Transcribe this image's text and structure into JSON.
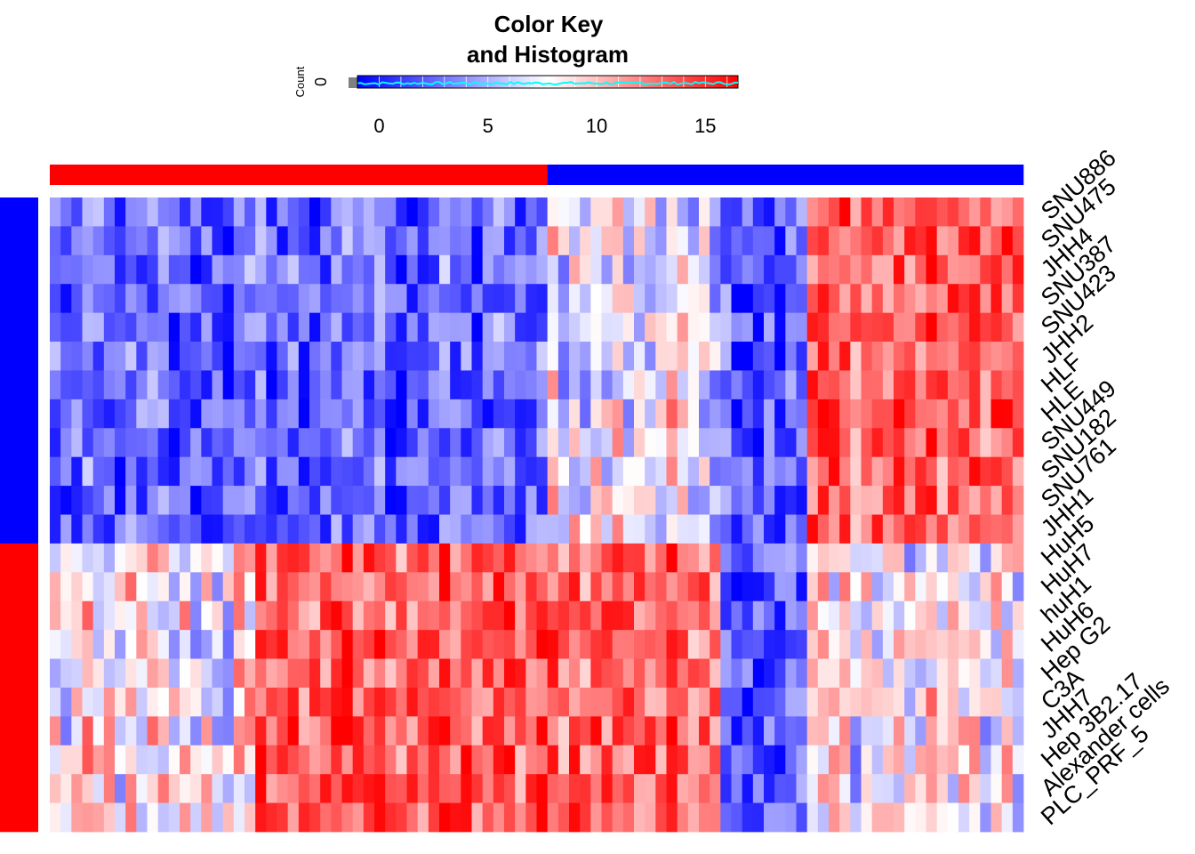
{
  "chart_data": {
    "type": "heatmap",
    "key": {
      "title_line1": "Color Key",
      "title_line2": "and Histogram",
      "ylabel": "Count",
      "ytick": "0",
      "range": [
        -1,
        16.5
      ],
      "ticks": [
        "0",
        "5",
        "10",
        "15"
      ],
      "tick_values": [
        0,
        5,
        10,
        15
      ],
      "colors": {
        "low": "#0000ff",
        "mid": "#ffffff",
        "high": "#ff0000",
        "histogram": "#00ffff"
      }
    },
    "column_groups": [
      {
        "color": "#ff0000",
        "count": 46
      },
      {
        "color": "#0000ff",
        "count": 44
      }
    ],
    "column_blocks": [
      19,
      27,
      16,
      8,
      20
    ],
    "row_groups": [
      {
        "color": "#0000ff",
        "count": 12
      },
      {
        "color": "#ff0000",
        "count": 10
      }
    ],
    "row_labels": [
      "SNU886",
      "SNU475",
      "JHH4",
      "SNU387",
      "SNU423",
      "JHH2",
      "HLF",
      "HLE",
      "SNU449",
      "SNU182",
      "SNU761",
      "JHH1",
      "HuH5",
      "HuH7",
      "huH1",
      "HuH6",
      "Hep G2",
      "C3A",
      "JHH7",
      "Hep 3B2.17",
      "Alexander cells",
      "PLC_PRF_5"
    ],
    "block_patterns": {
      "upper": [
        "low",
        "low",
        "mid",
        "low",
        "high"
      ],
      "lower": [
        "mid",
        "high",
        "high",
        "low",
        "mid"
      ]
    }
  }
}
